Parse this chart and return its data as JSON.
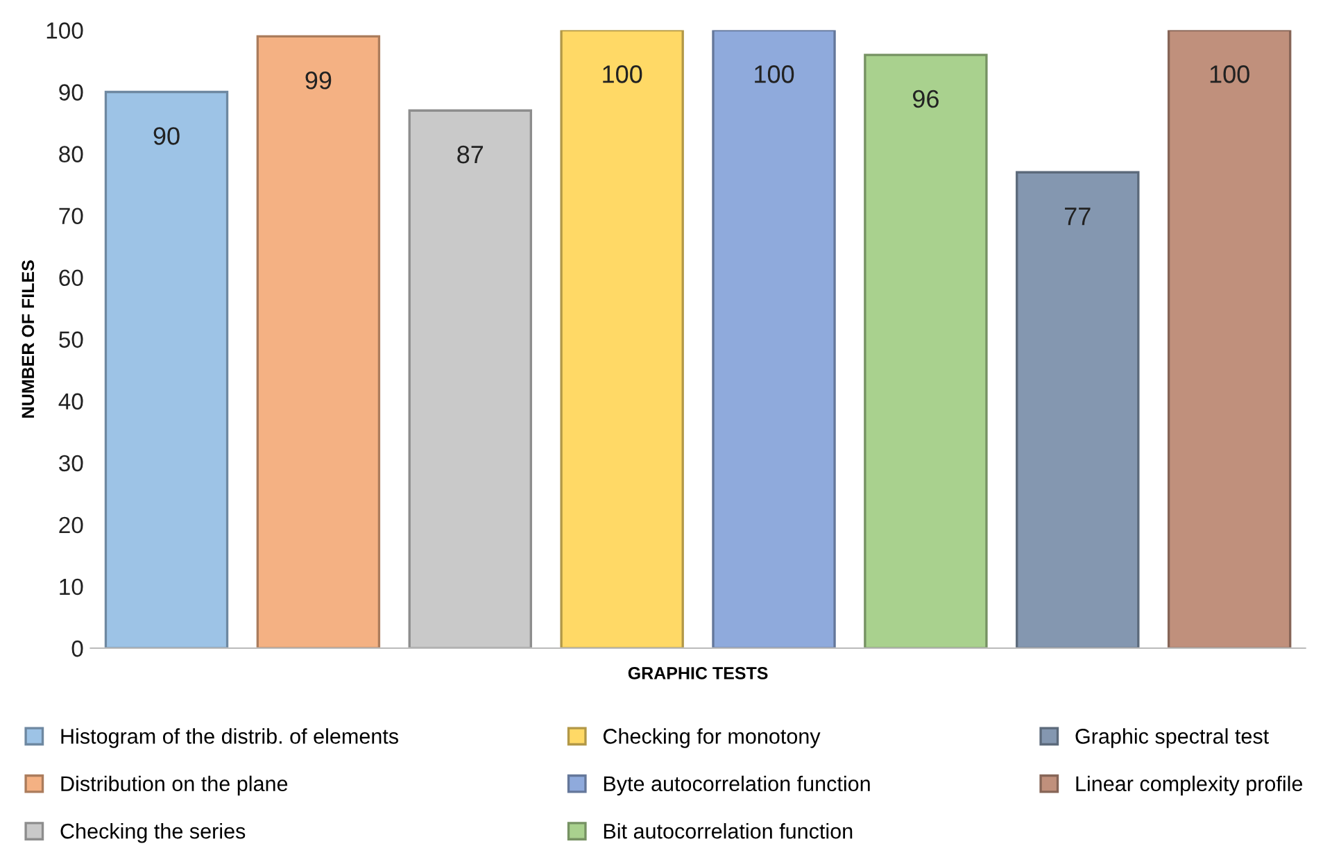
{
  "chart_data": {
    "type": "bar",
    "xlabel": "GRAPHIC TESTS",
    "ylabel": "NUMBER OF FILES",
    "categories": [
      null,
      null,
      null,
      null,
      null,
      null,
      null,
      null
    ],
    "series": [
      {
        "name": "Histogram of the distrib. of elements",
        "color": "#9dc3e6",
        "values": [
          90,
          null,
          null,
          null,
          null,
          null,
          null,
          null
        ]
      },
      {
        "name": "Distribution on the plane",
        "color": "#f4b183",
        "values": [
          null,
          99,
          null,
          null,
          null,
          null,
          null,
          null
        ]
      },
      {
        "name": "Checking the series",
        "color": "#c9c9c9",
        "values": [
          null,
          null,
          87,
          null,
          null,
          null,
          null,
          null
        ]
      },
      {
        "name": "Checking for monotony",
        "color": "#ffd966",
        "values": [
          null,
          null,
          null,
          100,
          null,
          null,
          null,
          null
        ]
      },
      {
        "name": "Byte autocorrelation function",
        "color": "#8faadc",
        "values": [
          null,
          null,
          null,
          null,
          100,
          null,
          null,
          null
        ]
      },
      {
        "name": "Bit autocorrelation function",
        "color": "#a9d18e",
        "values": [
          null,
          null,
          null,
          null,
          null,
          96,
          null,
          null
        ]
      },
      {
        "name": "Graphic spectral test",
        "color": "#8497b0",
        "values": [
          null,
          null,
          null,
          null,
          null,
          null,
          77,
          null
        ]
      },
      {
        "name": "Linear complexity profile",
        "color": "#c0907c",
        "values": [
          null,
          null,
          null,
          null,
          null,
          null,
          null,
          100
        ]
      }
    ],
    "ylim": [
      0,
      100
    ],
    "yticks": [
      0,
      10,
      20,
      30,
      40,
      50,
      60,
      70,
      80,
      90,
      100
    ],
    "data_labels": true,
    "grid": false,
    "legend": "bottom"
  }
}
